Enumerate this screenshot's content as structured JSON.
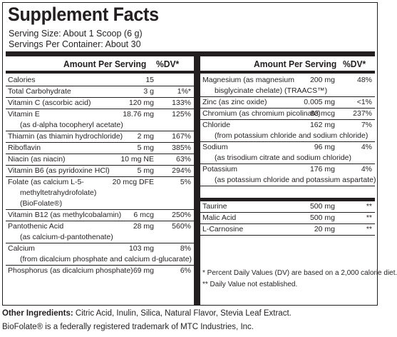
{
  "title": "Supplement Facts",
  "serving_size": "Serving Size:  About 1 Scoop (6 g)",
  "servings_per_container": "Servings Per Container: About 30",
  "header": {
    "amount": "Amount Per Serving",
    "dv": "%DV*"
  },
  "left_rows": [
    {
      "name": "Calories",
      "amount": "15",
      "dv": ""
    },
    {
      "name": "Total Carbohydrate",
      "amount": "3 g",
      "dv": "1%*"
    },
    {
      "name": "Vitamin C (ascorbic acid)",
      "amount": "120 mg",
      "dv": "133%"
    },
    {
      "name": "Vitamin E",
      "amount": "18.76 mg",
      "dv": "125%",
      "sub": [
        "(as d-alpha tocopheryl acetate)"
      ]
    },
    {
      "name": "Thiamin (as thiamin hydrochloride)",
      "amount": "2 mg",
      "dv": "167%"
    },
    {
      "name": "Riboflavin",
      "amount": "5 mg",
      "dv": "385%"
    },
    {
      "name": "Niacin (as niacin)",
      "amount": "10 mg NE",
      "dv": "63%"
    },
    {
      "name": "Vitamin B6 (as pyridoxine HCl)",
      "amount": "5 mg",
      "dv": "294%"
    },
    {
      "name": "Folate (as calcium L-5-",
      "amount": "20 mcg DFE",
      "dv": "5%",
      "sub": [
        "methyltetrahydrofolate)",
        "(BioFolate®)"
      ]
    },
    {
      "name": "Vitamin B12 (as methylcobalamin)",
      "amount": "6 mcg",
      "dv": "250%"
    },
    {
      "name": "Pantothenic Acid",
      "amount": "28 mg",
      "dv": "560%",
      "sub": [
        "(as calcium-d-pantothenate)"
      ]
    },
    {
      "name": "Calcium",
      "amount": "103 mg",
      "dv": "8%",
      "sub": [
        "(from dicalcium phosphate and calcium d-glucarate)"
      ]
    },
    {
      "name": "Phosphorus (as dicalcium phosphate)",
      "amount": "69 mg",
      "dv": "6%"
    }
  ],
  "right_rows": [
    {
      "name": "Magnesium (as magnesium",
      "amount": "200 mg",
      "dv": "48%",
      "sub": [
        "bisglycinate chelate) (TRAACS™)"
      ]
    },
    {
      "name": "Zinc (as zinc oxide)",
      "amount": "0.005 mg",
      "dv": "<1%"
    },
    {
      "name": "Chromium (as chromium picolinate)",
      "amount": "83 mcg",
      "dv": "237%"
    },
    {
      "name": "Chloride",
      "amount": "162 mg",
      "dv": "7%",
      "sub": [
        "(from potassium chloride and sodium chloride)"
      ]
    },
    {
      "name": "Sodium",
      "amount": "96 mg",
      "dv": "4%",
      "sub": [
        "(as trisodium citrate and sodium chloride)"
      ]
    },
    {
      "name": "Potassium",
      "amount": "176 mg",
      "dv": "4%",
      "sub": [
        "(as potassium chloride and potassium aspartate)"
      ]
    }
  ],
  "right_rows_2": [
    {
      "name": "Taurine",
      "amount": "500 mg",
      "dv": "**"
    },
    {
      "name": "Malic Acid",
      "amount": "500 mg",
      "dv": "**"
    },
    {
      "name": "L-Carnosine",
      "amount": "20 mg",
      "dv": "**"
    }
  ],
  "footnotes": [
    "* Percent Daily Values (DV) are based on a 2,000 calorie diet.",
    "** Daily Value not established."
  ],
  "other_ingredients_label": "Other Ingredients:",
  "other_ingredients": " Citric Acid, Inulin, Silica, Natural Flavor, Stevia Leaf Extract.",
  "trademark": "BioFolate® is a federally registered trademark of MTC Industries, Inc."
}
